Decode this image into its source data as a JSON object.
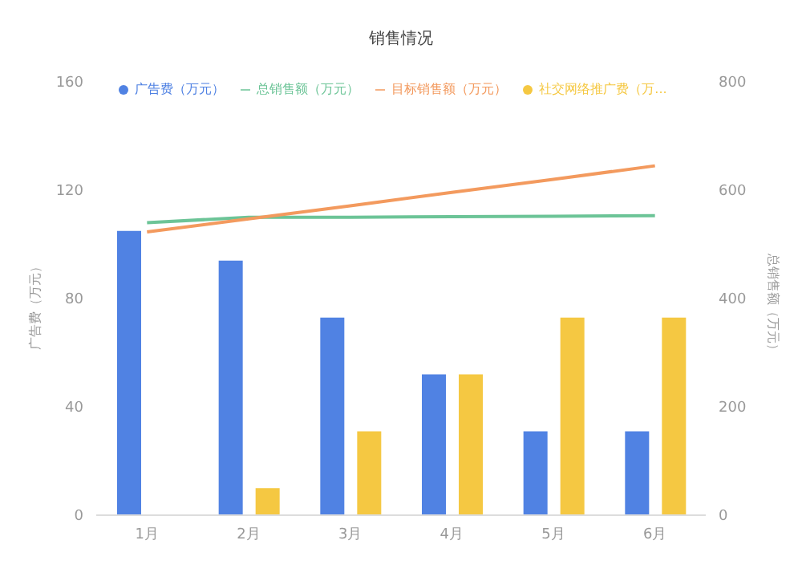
{
  "chart_data": {
    "type": "bar",
    "title": "销售情况",
    "categories": [
      "1月",
      "2月",
      "3月",
      "4月",
      "5月",
      "6月"
    ],
    "ylabel": "广告费（万元）",
    "y2label": "总销售额（万元）",
    "series": [
      {
        "name": "广告费（万元）",
        "color": "#5082e3",
        "values": [
          105,
          94,
          73,
          52,
          31,
          31
        ]
      },
      {
        "name": "社交网络推广费（万...",
        "color": "#f5c842",
        "values": [
          0,
          10,
          31,
          52,
          73,
          73
        ]
      },
      {
        "name": "总销售额（万元）",
        "type": "line",
        "axis": "y2",
        "color": "#6cc497",
        "values": [
          540,
          550,
          550,
          551,
          552,
          553
        ]
      },
      {
        "name": "目标销售额（万元）",
        "type": "line",
        "axis": "y2",
        "color": "#f39a5e",
        "values": [
          523,
          547,
          571,
          596,
          620,
          645
        ]
      }
    ],
    "ylim": [
      0,
      160
    ],
    "yticks": [
      0,
      40,
      80,
      120,
      160
    ],
    "y2lim": [
      0,
      800
    ],
    "y2ticks": [
      0,
      200,
      400,
      600,
      800
    ],
    "legend": "top",
    "marker": "none"
  }
}
